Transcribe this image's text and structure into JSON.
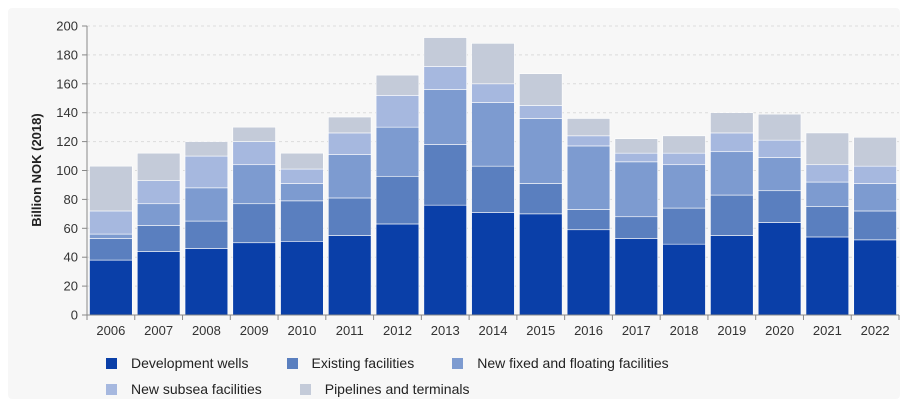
{
  "chart_data": {
    "type": "bar",
    "stacked": true,
    "categories": [
      "2006",
      "2007",
      "2008",
      "2009",
      "2010",
      "2011",
      "2012",
      "2013",
      "2014",
      "2015",
      "2016",
      "2017",
      "2018",
      "2019",
      "2020",
      "2021",
      "2022"
    ],
    "ylabel": "Billion NOK (2018)",
    "ylim": [
      0,
      200
    ],
    "yticks": [
      0,
      20,
      40,
      60,
      80,
      100,
      120,
      140,
      160,
      180,
      200
    ],
    "grid": true,
    "legend_position": "bottom",
    "series": [
      {
        "name": "Development wells",
        "color": "#0a3fa8",
        "values": [
          38,
          44,
          46,
          50,
          51,
          55,
          63,
          76,
          71,
          70,
          59,
          53,
          49,
          55,
          64,
          54,
          52
        ]
      },
      {
        "name": "Existing facilities",
        "color": "#5a7fbf",
        "values": [
          15,
          18,
          19,
          27,
          28,
          26,
          33,
          42,
          32,
          21,
          14,
          15,
          25,
          28,
          22,
          21,
          20
        ]
      },
      {
        "name": "New fixed and floating facilities",
        "color": "#7d9bd0",
        "values": [
          3,
          15,
          23,
          27,
          12,
          30,
          34,
          38,
          44,
          45,
          44,
          38,
          30,
          30,
          23,
          17,
          19
        ]
      },
      {
        "name": "New subsea facilities",
        "color": "#a6b8df",
        "values": [
          16,
          16,
          22,
          16,
          10,
          15,
          22,
          16,
          13,
          9,
          7,
          6,
          8,
          13,
          12,
          12,
          12
        ]
      },
      {
        "name": "Pipelines and terminals",
        "color": "#c4cbd9",
        "values": [
          31,
          19,
          10,
          10,
          11,
          11,
          14,
          20,
          28,
          22,
          12,
          10,
          12,
          14,
          18,
          22,
          20
        ]
      }
    ]
  }
}
